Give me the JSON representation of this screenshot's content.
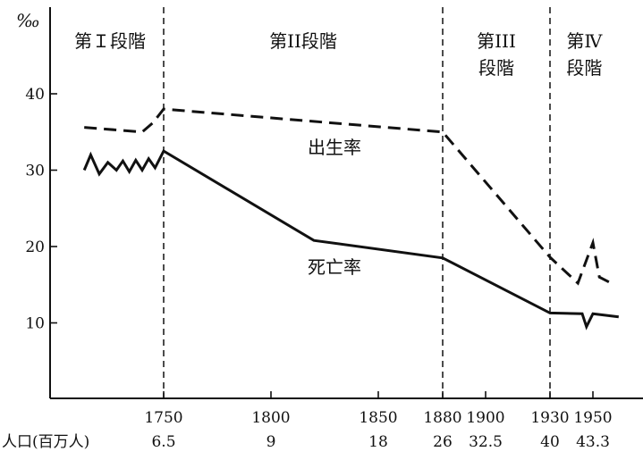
{
  "chart_data": {
    "type": "line",
    "yunit": "‰",
    "ylim": [
      0,
      45
    ],
    "yticks": [
      10,
      20,
      30,
      40
    ],
    "xticks": [
      1750,
      1800,
      1850,
      1880,
      1900,
      1930,
      1950
    ],
    "stages": [
      {
        "lines": [
          "第Ｉ段階"
        ],
        "start": 1700,
        "end": 1750
      },
      {
        "lines": [
          "第II段階"
        ],
        "start": 1750,
        "end": 1880
      },
      {
        "lines": [
          "第III",
          "段階"
        ],
        "start": 1880,
        "end": 1930
      },
      {
        "lines": [
          "第Ⅳ",
          "段階"
        ],
        "start": 1930,
        "end": 1962
      }
    ],
    "stage_boundaries": [
      1750,
      1880,
      1930
    ],
    "series": [
      {
        "name": "出生率",
        "style": "dashed",
        "points": [
          [
            1713,
            35.6
          ],
          [
            1740,
            35.0
          ],
          [
            1745,
            36.2
          ],
          [
            1750,
            38.0
          ],
          [
            1880,
            35.0
          ],
          [
            1930,
            18.6
          ],
          [
            1943,
            15.2
          ],
          [
            1950,
            20.5
          ],
          [
            1953,
            16.0
          ],
          [
            1960,
            15.0
          ]
        ]
      },
      {
        "name": "死亡率",
        "style": "solid",
        "points": [
          [
            1713,
            30.0
          ],
          [
            1716,
            32.0
          ],
          [
            1720,
            29.5
          ],
          [
            1724,
            31.0
          ],
          [
            1728,
            30.0
          ],
          [
            1731,
            31.2
          ],
          [
            1734,
            29.8
          ],
          [
            1737,
            31.3
          ],
          [
            1740,
            30.0
          ],
          [
            1743,
            31.5
          ],
          [
            1746,
            30.3
          ],
          [
            1750,
            32.5
          ],
          [
            1820,
            20.8
          ],
          [
            1880,
            18.5
          ],
          [
            1930,
            11.3
          ],
          [
            1945,
            11.2
          ],
          [
            1947,
            9.5
          ],
          [
            1950,
            11.2
          ],
          [
            1962,
            10.8
          ]
        ]
      }
    ],
    "population": {
      "label": "人口(百万人)",
      "values": [
        {
          "x": 1750,
          "value": "6.5"
        },
        {
          "x": 1800,
          "value": "9"
        },
        {
          "x": 1850,
          "value": "18"
        },
        {
          "x": 1880,
          "value": "26"
        },
        {
          "x": 1900,
          "value": "32.5"
        },
        {
          "x": 1930,
          "value": "40"
        },
        {
          "x": 1950,
          "value": "43.3"
        }
      ]
    }
  }
}
